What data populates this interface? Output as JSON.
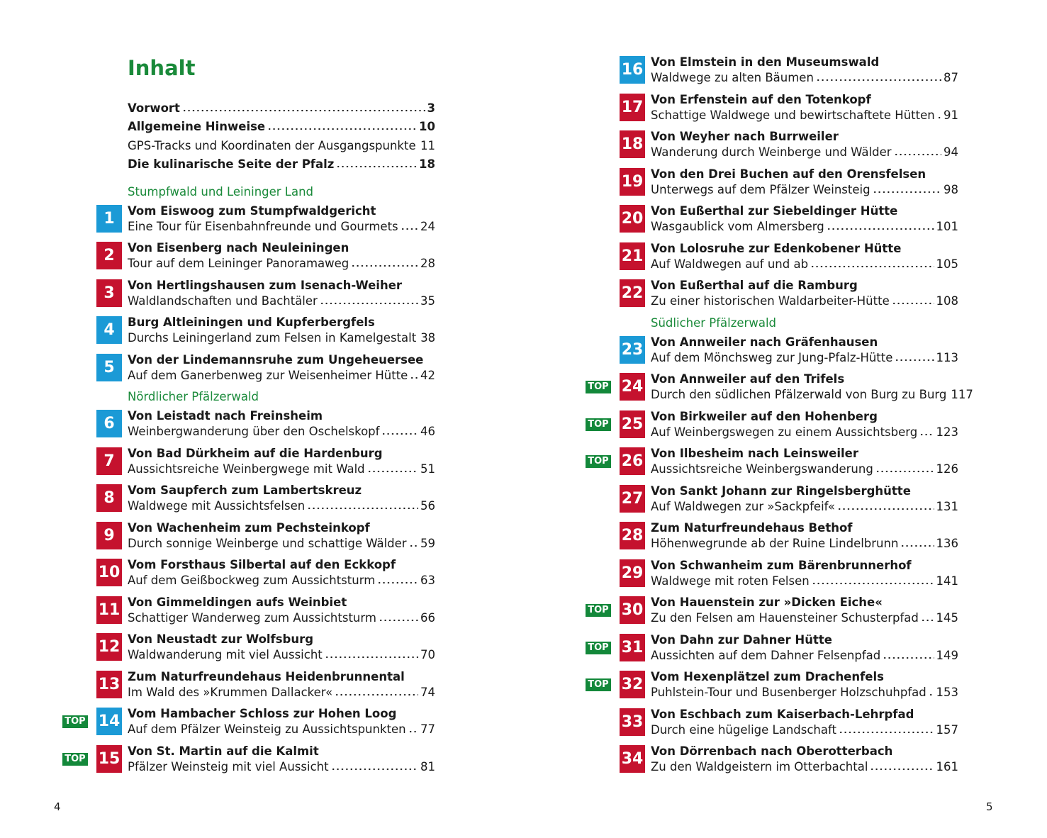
{
  "left": {
    "title": "Inhalt",
    "front_matter": [
      {
        "title": "Vorwort",
        "page": 3,
        "bold": true
      },
      {
        "title": "Allgemeine Hinweise",
        "page": 10,
        "bold": true
      },
      {
        "title": "GPS-Tracks und Koordinaten der Ausgangspunkte",
        "page": 11,
        "bold": false
      },
      {
        "title": "Die kulinarische Seite der Pfalz",
        "page": 18,
        "bold": true
      }
    ],
    "sections": [
      {
        "name": "Stumpfwald und Leininger Land",
        "tours": [
          {
            "number": 1,
            "title": "Vom Eiswoog zum Stumpfwaldgericht",
            "subtitle": "Eine Tour für Eisenbahnfreunde und Gourmets",
            "page": 24,
            "color": "#1b9ad6"
          },
          {
            "number": 2,
            "title": "Von Eisenberg nach Neuleiningen",
            "subtitle": "Tour auf dem Leininger Panoramaweg",
            "page": 28,
            "color": "#c5122e"
          },
          {
            "number": 3,
            "title": "Von Hertlingshausen zum Isenach-Weiher",
            "subtitle": "Waldlandschaften und Bachtäler",
            "page": 35,
            "color": "#c5122e"
          },
          {
            "number": 4,
            "title": "Burg Altleiningen und Kupferbergfels",
            "subtitle": "Durchs Leiningerland zum Felsen in Kamelgestalt",
            "page": 38,
            "color": "#1b9ad6"
          },
          {
            "number": 5,
            "title": "Von der Lindemannsruhe zum Ungeheuersee",
            "subtitle": "Auf dem Ganerbenweg zur Weisenheimer Hütte",
            "page": 42,
            "color": "#1b9ad6"
          }
        ]
      },
      {
        "name": "Nördlicher Pfälzerwald",
        "tours": [
          {
            "number": 6,
            "title": "Von Leistadt nach Freinsheim",
            "subtitle": "Weinbergwanderung über den Oschelskopf",
            "page": 46,
            "color": "#1b9ad6"
          },
          {
            "number": 7,
            "title": "Von Bad Dürkheim auf die Hardenburg",
            "subtitle": "Aussichtsreiche Weinbergwege mit Wald",
            "page": 51,
            "color": "#c5122e"
          },
          {
            "number": 8,
            "title": "Vom Saupferch zum Lambertskreuz",
            "subtitle": "Waldwege mit Aussichtsfelsen",
            "page": 56,
            "color": "#c5122e"
          },
          {
            "number": 9,
            "title": "Von Wachenheim zum Pechsteinkopf",
            "subtitle": "Durch sonnige Weinberge und schattige Wälder",
            "page": 59,
            "color": "#c5122e"
          },
          {
            "number": 10,
            "title": "Vom Forsthaus Silbertal auf den Eckkopf",
            "subtitle": "Auf dem Geißbockweg zum Aussichtsturm",
            "page": 63,
            "color": "#c5122e"
          },
          {
            "number": 11,
            "title": "Von Gimmeldingen aufs Weinbiet",
            "subtitle": "Schattiger Wanderweg zum Aussichtsturm",
            "page": 66,
            "color": "#c5122e"
          },
          {
            "number": 12,
            "title": "Von Neustadt zur Wolfsburg",
            "subtitle": "Waldwanderung mit viel Aussicht",
            "page": 70,
            "color": "#c5122e"
          },
          {
            "number": 13,
            "title": "Zum Naturfreundehaus Heidenbrunnental",
            "subtitle": "Im Wald des »Krummen Dallacker«",
            "page": 74,
            "color": "#c5122e"
          },
          {
            "number": 14,
            "title": "Vom Hambacher Schloss zur Hohen Loog",
            "subtitle": "Auf dem Pfälzer Weinsteig zu Aussichtspunkten",
            "page": 77,
            "color": "#1b9ad6",
            "badge": "TOP"
          },
          {
            "number": 15,
            "title": "Von St. Martin auf die Kalmit",
            "subtitle": "Pfälzer Weinsteig mit viel Aussicht",
            "page": 81,
            "color": "#c5122e",
            "badge": "TOP"
          }
        ]
      }
    ],
    "page_number": 4
  },
  "right": {
    "sections": [
      {
        "tours": [
          {
            "number": 16,
            "title": "Von Elmstein in den Museumswald",
            "subtitle": "Waldwege zu alten Bäumen",
            "page": 87,
            "color": "#1b9ad6"
          },
          {
            "number": 17,
            "title": "Von Erfenstein auf den Totenkopf",
            "subtitle": "Schattige Waldwege und bewirtschaftete Hütten",
            "page": 91,
            "color": "#c5122e"
          },
          {
            "number": 18,
            "title": "Von Weyher nach Burrweiler",
            "subtitle": "Wanderung durch Weinberge und Wälder",
            "page": 94,
            "color": "#c5122e"
          },
          {
            "number": 19,
            "title": "Von den Drei Buchen auf den Orensfelsen",
            "subtitle": "Unterwegs auf dem Pfälzer Weinsteig",
            "page": 98,
            "color": "#c5122e"
          },
          {
            "number": 20,
            "title": "Von Eußerthal zur Siebeldinger Hütte",
            "subtitle": "Wasgaublick vom Almersberg",
            "page": 101,
            "color": "#c5122e"
          },
          {
            "number": 21,
            "title": "Von Lolosruhe zur Edenkobener Hütte",
            "subtitle": "Auf Waldwegen auf und ab",
            "page": 105,
            "color": "#c5122e"
          },
          {
            "number": 22,
            "title": "Von Eußerthal auf die Ramburg",
            "subtitle": "Zu einer historischen Waldarbeiter-Hütte",
            "page": 108,
            "color": "#c5122e"
          }
        ]
      },
      {
        "name": "Südlicher Pfälzerwald",
        "tours": [
          {
            "number": 23,
            "title": "Von Annweiler nach Gräfenhausen",
            "subtitle": "Auf dem Mönchsweg zur Jung-Pfalz-Hütte",
            "page": 113,
            "color": "#1b9ad6"
          },
          {
            "number": 24,
            "title": "Von Annweiler auf den Trifels",
            "subtitle": "Durch den südlichen Pfälzerwald von Burg zu Burg",
            "page": 117,
            "color": "#c5122e",
            "badge": "TOP"
          },
          {
            "number": 25,
            "title": "Von Birkweiler auf den Hohenberg",
            "subtitle": "Auf Weinbergswegen zu einem Aussichtsberg",
            "page": 123,
            "color": "#c5122e",
            "badge": "TOP"
          },
          {
            "number": 26,
            "title": "Von Ilbesheim nach Leinsweiler",
            "subtitle": "Aussichtsreiche Weinbergswanderung",
            "page": 126,
            "color": "#c5122e",
            "badge": "TOP"
          },
          {
            "number": 27,
            "title": "Von Sankt Johann zur Ringelsberghütte",
            "subtitle": "Auf Waldwegen zur »Sackpfeif«",
            "page": 131,
            "color": "#c5122e"
          },
          {
            "number": 28,
            "title": "Zum Naturfreundehaus Bethof",
            "subtitle": "Höhenwegrunde ab der Ruine Lindelbrunn",
            "page": 136,
            "color": "#c5122e"
          },
          {
            "number": 29,
            "title": "Von Schwanheim zum Bärenbrunnerhof",
            "subtitle": "Waldwege mit roten Felsen",
            "page": 141,
            "color": "#c5122e"
          },
          {
            "number": 30,
            "title": "Von Hauenstein zur »Dicken Eiche«",
            "subtitle": "Zu den Felsen am Hauensteiner Schusterpfad",
            "page": 145,
            "color": "#c5122e",
            "badge": "TOP"
          },
          {
            "number": 31,
            "title": "Von Dahn zur Dahner Hütte",
            "subtitle": "Aussichten auf dem Dahner Felsenpfad",
            "page": 149,
            "color": "#c5122e",
            "badge": "TOP"
          },
          {
            "number": 32,
            "title": "Vom Hexenplätzel zum Drachenfels",
            "subtitle": "Puhlstein-Tour und Busenberger Holzschuhpfad",
            "page": 153,
            "color": "#c5122e",
            "badge": "TOP"
          },
          {
            "number": 33,
            "title": "Von Eschbach zum Kaiserbach-Lehrpfad",
            "subtitle": "Durch eine hügelige Landschaft",
            "page": 157,
            "color": "#c5122e"
          },
          {
            "number": 34,
            "title": "Von Dörrenbach nach Oberotterbach",
            "subtitle": "Zu den Waldgeistern im Otterbachtal",
            "page": 161,
            "color": "#c5122e"
          }
        ]
      }
    ],
    "page_number": 5
  }
}
